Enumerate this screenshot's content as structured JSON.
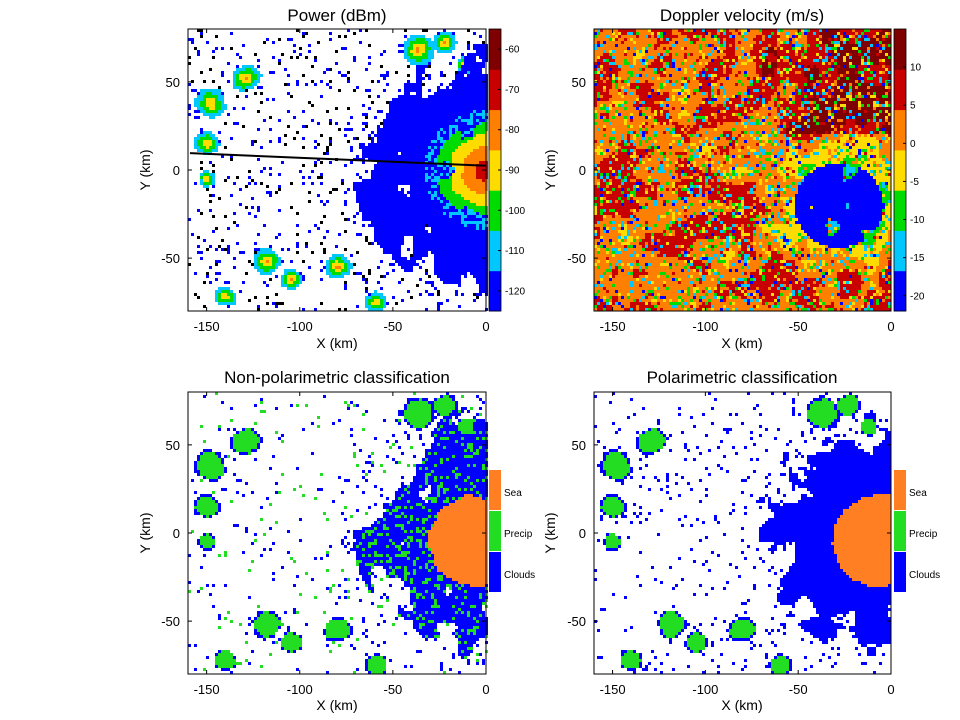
{
  "chart_data": [
    {
      "type": "heatmap",
      "title": "Power (dBm)",
      "xlabel": "X (km)",
      "ylabel": "Y (km)",
      "xlim": [
        -160,
        0
      ],
      "ylim": [
        -80,
        80
      ],
      "xticks": [
        "-150",
        "-100",
        "-50",
        "0"
      ],
      "yticks": [
        "-50",
        "0",
        "50"
      ],
      "colorbar": {
        "kind": "continuous",
        "range": [
          -125,
          -55
        ],
        "ticks": [
          "-60",
          "-70",
          "-80",
          "-90",
          "-100",
          "-110",
          "-120"
        ],
        "colors": [
          "#0000ff",
          "#00c8ff",
          "#00dc00",
          "#ffdc00",
          "#ff7f00",
          "#c80000",
          "#7f0000"
        ]
      },
      "pattern": "power",
      "grid": false
    },
    {
      "type": "heatmap",
      "title": "Doppler velocity (m/s)",
      "xlabel": "X (km)",
      "ylabel": "Y (km)",
      "xlim": [
        -160,
        0
      ],
      "ylim": [
        -80,
        80
      ],
      "xticks": [
        "-150",
        "-100",
        "-50",
        "0"
      ],
      "yticks": [
        "-50",
        "0",
        "50"
      ],
      "colorbar": {
        "kind": "continuous",
        "range": [
          -22,
          15
        ],
        "ticks": [
          "10",
          "5",
          "0",
          "-5",
          "-10",
          "-15",
          "-20"
        ],
        "colors": [
          "#0000ff",
          "#00c8ff",
          "#00dc00",
          "#ffdc00",
          "#ff7f00",
          "#c80000",
          "#7f0000"
        ]
      },
      "pattern": "doppler",
      "grid": false
    },
    {
      "type": "heatmap",
      "title": "Non-polarimetric classification",
      "xlabel": "X (km)",
      "ylabel": "Y (km)",
      "xlim": [
        -160,
        0
      ],
      "ylim": [
        -80,
        80
      ],
      "xticks": [
        "-150",
        "-100",
        "-50",
        "0"
      ],
      "yticks": [
        "-50",
        "0",
        "50"
      ],
      "colorbar": {
        "kind": "categorical",
        "categories": [
          "Sea",
          "Precip",
          "Clouds"
        ],
        "colors": [
          "#ff7f22",
          "#22dd22",
          "#0000ff"
        ]
      },
      "pattern": "class_nonpol",
      "grid": false
    },
    {
      "type": "heatmap",
      "title": "Polarimetric classification",
      "xlabel": "X (km)",
      "ylabel": "Y (km)",
      "xlim": [
        -160,
        0
      ],
      "ylim": [
        -80,
        80
      ],
      "xticks": [
        "-150",
        "-100",
        "-50",
        "0"
      ],
      "yticks": [
        "-50",
        "0",
        "50"
      ],
      "colorbar": {
        "kind": "categorical",
        "categories": [
          "Sea",
          "Precip",
          "Clouds"
        ],
        "colors": [
          "#ff7f22",
          "#22dd22",
          "#0000ff"
        ]
      },
      "pattern": "class_pol",
      "grid": false
    }
  ]
}
